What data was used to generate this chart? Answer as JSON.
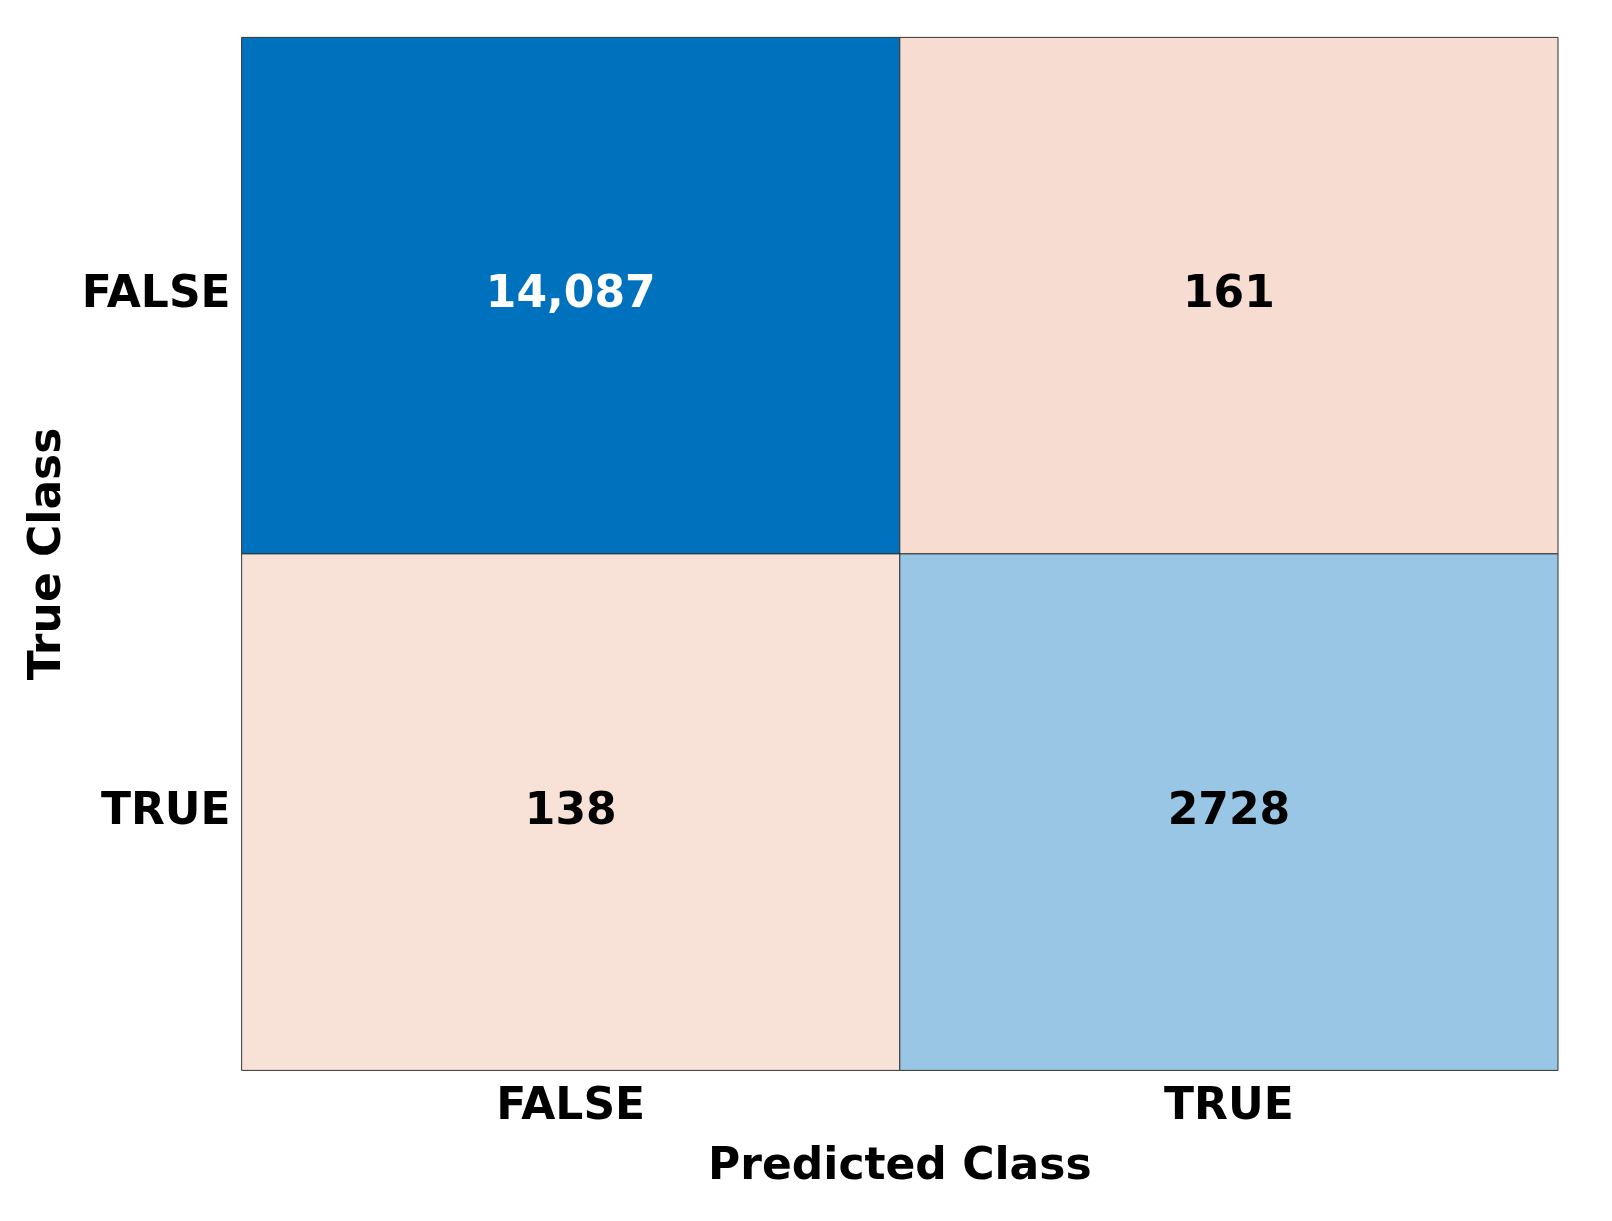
{
  "chart_data": {
    "type": "heatmap",
    "xlabel": "Predicted Class",
    "ylabel": "True Class",
    "categories": [
      "FALSE",
      "TRUE"
    ],
    "y_categories": [
      "FALSE",
      "TRUE"
    ],
    "cells": [
      [
        14087,
        161
      ],
      [
        138,
        2728
      ]
    ],
    "cell_labels": [
      [
        "14,087",
        "161"
      ],
      [
        "138",
        "2728"
      ]
    ]
  }
}
